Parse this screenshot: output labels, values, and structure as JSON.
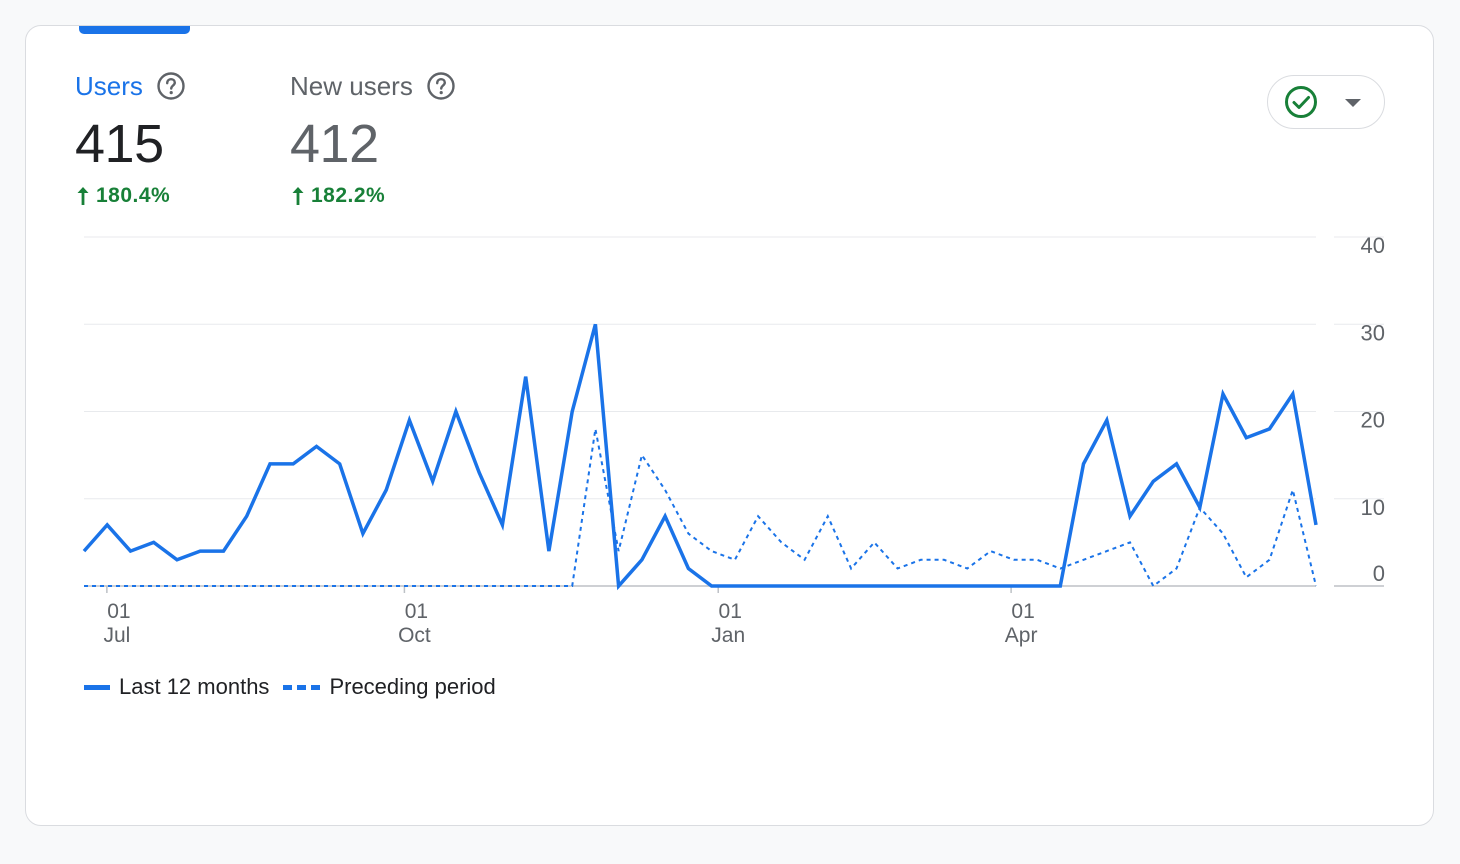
{
  "metrics": [
    {
      "label": "Users",
      "value": "415",
      "change": "180.4%",
      "active": true
    },
    {
      "label": "New users",
      "value": "412",
      "change": "182.2%",
      "active": false
    }
  ],
  "colors": {
    "accent": "#1a73e8",
    "positive": "#188038",
    "grid": "#e8eaed",
    "axis_text": "#5f6368"
  },
  "legend": {
    "current": "Last 12 months",
    "previous": "Preceding period"
  },
  "icons": {
    "help": "help-circle-icon",
    "trend": "arrow-up-icon",
    "status": "check-circle-icon",
    "dropdown": "dropdown-icon"
  },
  "chart_data": {
    "type": "line",
    "y_ticks": [
      "0",
      "10",
      "20",
      "30",
      "40"
    ],
    "ylim": [
      0,
      40
    ],
    "grid": true,
    "x_ticks": [
      {
        "day": "01",
        "month": "Jul",
        "index": 1.5
      },
      {
        "day": "01",
        "month": "Oct",
        "index": 14.3
      },
      {
        "day": "01",
        "month": "Jan",
        "index": 27.8
      },
      {
        "day": "01",
        "month": "Apr",
        "index": 40.4
      }
    ],
    "legend_position": "bottom-left",
    "series": [
      {
        "name": "Last 12 months",
        "style": "solid",
        "values": [
          4,
          7,
          4,
          5,
          3,
          4,
          4,
          8,
          14,
          14,
          16,
          14,
          6,
          11,
          19,
          12,
          20,
          13,
          7,
          24,
          4,
          20,
          30,
          0,
          3,
          8,
          2,
          0,
          0,
          0,
          0,
          0,
          0,
          0,
          0,
          0,
          0,
          0,
          0,
          0,
          0,
          0,
          0,
          14,
          19,
          8,
          12,
          14,
          9,
          22,
          17,
          18,
          22,
          7
        ]
      },
      {
        "name": "Preceding period",
        "style": "dashed",
        "values": [
          0,
          0,
          0,
          0,
          0,
          0,
          0,
          0,
          0,
          0,
          0,
          0,
          0,
          0,
          0,
          0,
          0,
          0,
          0,
          0,
          0,
          0,
          18,
          4,
          15,
          11,
          6,
          4,
          3,
          8,
          5,
          3,
          8,
          2,
          5,
          2,
          3,
          3,
          2,
          4,
          3,
          3,
          2,
          3,
          4,
          5,
          0,
          2,
          9,
          6,
          1,
          3,
          11,
          0
        ]
      }
    ]
  }
}
